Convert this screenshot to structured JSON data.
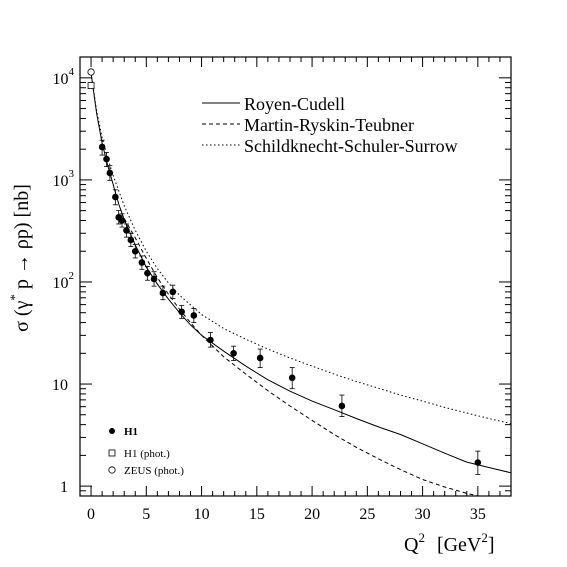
{
  "chart_data": {
    "type": "scatter",
    "title": "",
    "xlabel": "Q",
    "xlabel_sup": "2",
    "xlabel_unit": "[GeV",
    "xlabel_unit_sup": "2",
    "xlabel_unit_close": "]",
    "ylabel": "σ (γ",
    "ylabel_sup": "*",
    "ylabel_rest": " p → ρp)  [nb]",
    "xlim": [
      -1,
      38
    ],
    "ylim": [
      0.8,
      16000
    ],
    "yscale": "log",
    "grid": false,
    "x_ticks": [
      "0",
      "5",
      "10",
      "15",
      "20",
      "25",
      "30",
      "35"
    ],
    "y_ticks": [
      {
        "value": 1,
        "base": "1",
        "exp": ""
      },
      {
        "value": 10,
        "base": "10",
        "exp": ""
      },
      {
        "value": 100,
        "base": "10",
        "exp": "2"
      },
      {
        "value": 1000,
        "base": "10",
        "exp": "3"
      },
      {
        "value": 10000,
        "base": "10",
        "exp": "4"
      }
    ],
    "legend_lines": {
      "position": "top-right",
      "entries": [
        {
          "label": "Royen-Cudell",
          "dash": "solid"
        },
        {
          "label": "Martin-Ryskin-Teubner",
          "dash": "dashed"
        },
        {
          "label": "Schildknecht-Schuler-Surrow",
          "dash": "dotted"
        }
      ]
    },
    "legend_markers": {
      "position": "bottom-left",
      "entries": [
        {
          "label": "H1",
          "marker": "filled-circle"
        },
        {
          "label": "H1 (phot.)",
          "marker": "open-square"
        },
        {
          "label": "ZEUS (phot.)",
          "marker": "open-circle"
        }
      ]
    },
    "series": [
      {
        "name": "H1",
        "marker": "filled-circle",
        "points": [
          {
            "x": 1.0,
            "y": 2100,
            "lo": 1750,
            "hi": 2450
          },
          {
            "x": 1.4,
            "y": 1600,
            "lo": 1350,
            "hi": 1850
          },
          {
            "x": 1.7,
            "y": 1170,
            "lo": 990,
            "hi": 1380
          },
          {
            "x": 2.2,
            "y": 680,
            "lo": 570,
            "hi": 800
          },
          {
            "x": 2.5,
            "y": 430,
            "lo": 370,
            "hi": 500
          },
          {
            "x": 2.8,
            "y": 400,
            "lo": 345,
            "hi": 465
          },
          {
            "x": 3.2,
            "y": 320,
            "lo": 275,
            "hi": 370
          },
          {
            "x": 3.6,
            "y": 258,
            "lo": 222,
            "hi": 300
          },
          {
            "x": 4.0,
            "y": 200,
            "lo": 172,
            "hi": 233
          },
          {
            "x": 4.6,
            "y": 155,
            "lo": 133,
            "hi": 180
          },
          {
            "x": 5.1,
            "y": 122,
            "lo": 104,
            "hi": 142
          },
          {
            "x": 5.7,
            "y": 107,
            "lo": 91,
            "hi": 126
          },
          {
            "x": 6.5,
            "y": 78,
            "lo": 67,
            "hi": 91
          },
          {
            "x": 7.4,
            "y": 80,
            "lo": 69,
            "hi": 93
          },
          {
            "x": 8.2,
            "y": 51,
            "lo": 44,
            "hi": 59
          },
          {
            "x": 9.3,
            "y": 47,
            "lo": 40,
            "hi": 55
          },
          {
            "x": 10.8,
            "y": 27,
            "lo": 23,
            "hi": 32
          },
          {
            "x": 12.9,
            "y": 20,
            "lo": 17,
            "hi": 23.5
          },
          {
            "x": 15.3,
            "y": 18,
            "lo": 14.5,
            "hi": 22
          },
          {
            "x": 18.2,
            "y": 11.5,
            "lo": 9,
            "hi": 14.5
          },
          {
            "x": 22.7,
            "y": 6.1,
            "lo": 4.8,
            "hi": 7.8
          },
          {
            "x": 35.0,
            "y": 1.7,
            "lo": 1.3,
            "hi": 2.2
          }
        ]
      },
      {
        "name": "H1 (phot.)",
        "marker": "open-square",
        "points": [
          {
            "x": 0.0,
            "y": 8400
          }
        ]
      },
      {
        "name": "ZEUS (phot.)",
        "marker": "open-circle",
        "points": [
          {
            "x": 0.0,
            "y": 11400
          }
        ]
      }
    ],
    "curves": [
      {
        "name": "Royen-Cudell",
        "dash": "solid",
        "points": [
          [
            0,
            11000
          ],
          [
            0.5,
            4500
          ],
          [
            1,
            2300
          ],
          [
            1.5,
            1400
          ],
          [
            2,
            900
          ],
          [
            2.5,
            580
          ],
          [
            3,
            410
          ],
          [
            4,
            230
          ],
          [
            5,
            140
          ],
          [
            6,
            95
          ],
          [
            7,
            68
          ],
          [
            8,
            50
          ],
          [
            9,
            38
          ],
          [
            10,
            30
          ],
          [
            12,
            21
          ],
          [
            14,
            15
          ],
          [
            16,
            11
          ],
          [
            18,
            8.5
          ],
          [
            20,
            6.8
          ],
          [
            22,
            5.6
          ],
          [
            24,
            4.6
          ],
          [
            26,
            3.8
          ],
          [
            28,
            3.2
          ],
          [
            30,
            2.6
          ],
          [
            32,
            2.1
          ],
          [
            34,
            1.72
          ],
          [
            36,
            1.52
          ],
          [
            38,
            1.35
          ]
        ]
      },
      {
        "name": "Martin-Ryskin-Teubner",
        "dash": "dashed",
        "points": [
          [
            3,
            420
          ],
          [
            4,
            270
          ],
          [
            5,
            170
          ],
          [
            6,
            110
          ],
          [
            7,
            76
          ],
          [
            8,
            54
          ],
          [
            9,
            40
          ],
          [
            10,
            30
          ],
          [
            12,
            18.5
          ],
          [
            14,
            12.5
          ],
          [
            16,
            8.6
          ],
          [
            18,
            6.1
          ],
          [
            20,
            4.4
          ],
          [
            22,
            3.2
          ],
          [
            24,
            2.4
          ],
          [
            26,
            1.85
          ],
          [
            28,
            1.45
          ],
          [
            30,
            1.16
          ],
          [
            32,
            0.98
          ],
          [
            34,
            0.85
          ],
          [
            35,
            0.8
          ]
        ]
      },
      {
        "name": "Schildknecht-Schuler-Surrow",
        "dash": "dotted",
        "points": [
          [
            0,
            11000
          ],
          [
            0.5,
            4800
          ],
          [
            1,
            2600
          ],
          [
            1.5,
            1650
          ],
          [
            2,
            1100
          ],
          [
            3,
            560
          ],
          [
            4,
            320
          ],
          [
            5,
            200
          ],
          [
            6,
            135
          ],
          [
            7,
            98
          ],
          [
            8,
            74
          ],
          [
            10,
            48
          ],
          [
            12,
            35
          ],
          [
            14,
            27.5
          ],
          [
            16,
            22
          ],
          [
            18,
            18
          ],
          [
            20,
            15
          ],
          [
            22,
            12.5
          ],
          [
            24,
            10.6
          ],
          [
            26,
            9.1
          ],
          [
            28,
            7.8
          ],
          [
            30,
            6.8
          ],
          [
            32,
            5.9
          ],
          [
            34,
            5.2
          ],
          [
            36,
            4.6
          ],
          [
            38,
            4.1
          ]
        ]
      }
    ]
  }
}
